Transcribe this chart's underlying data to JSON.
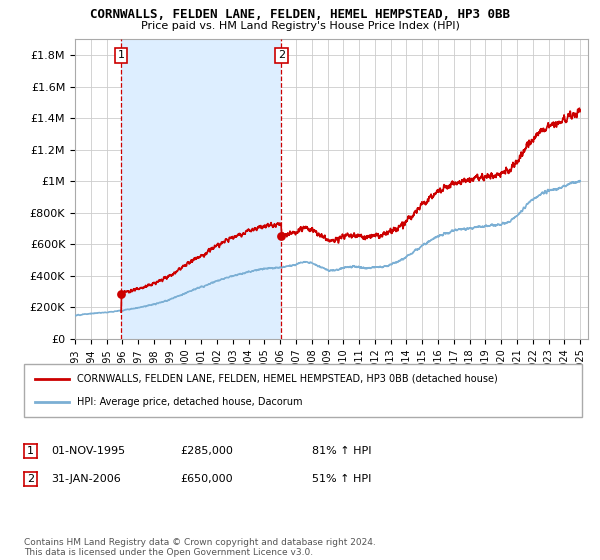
{
  "title": "CORNWALLS, FELDEN LANE, FELDEN, HEMEL HEMPSTEAD, HP3 0BB",
  "subtitle": "Price paid vs. HM Land Registry's House Price Index (HPI)",
  "legend_line1": "CORNWALLS, FELDEN LANE, FELDEN, HEMEL HEMPSTEAD, HP3 0BB (detached house)",
  "legend_line2": "HPI: Average price, detached house, Dacorum",
  "annotation1_date": "01-NOV-1995",
  "annotation1_price": "£285,000",
  "annotation1_hpi": "81% ↑ HPI",
  "annotation2_date": "31-JAN-2006",
  "annotation2_price": "£650,000",
  "annotation2_hpi": "51% ↑ HPI",
  "footnote": "Contains HM Land Registry data © Crown copyright and database right 2024.\nThis data is licensed under the Open Government Licence v3.0.",
  "sale_color": "#cc0000",
  "hpi_color": "#7bafd4",
  "shade_color": "#ddeeff",
  "vline_color": "#cc0000",
  "point_color": "#cc0000",
  "ylim": [
    0,
    1900000
  ],
  "yticks": [
    0,
    200000,
    400000,
    600000,
    800000,
    1000000,
    1200000,
    1400000,
    1600000,
    1800000
  ],
  "xlabel_years": [
    "1993",
    "1994",
    "1995",
    "1996",
    "1997",
    "1998",
    "1999",
    "2000",
    "2001",
    "2002",
    "2003",
    "2004",
    "2005",
    "2006",
    "2007",
    "2008",
    "2009",
    "2010",
    "2011",
    "2012",
    "2013",
    "2014",
    "2015",
    "2016",
    "2017",
    "2018",
    "2019",
    "2020",
    "2021",
    "2022",
    "2023",
    "2024",
    "2025"
  ],
  "background_color": "#ffffff",
  "grid_color": "#cccccc",
  "sale1_x": 1995.92,
  "sale1_y": 285000,
  "sale2_x": 2006.08,
  "sale2_y": 650000,
  "xlim_left": 1993.0,
  "xlim_right": 2025.5
}
